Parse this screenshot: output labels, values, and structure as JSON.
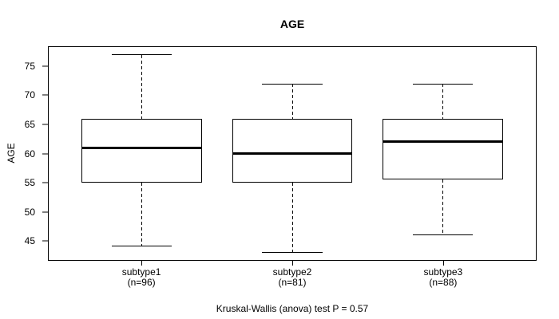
{
  "title": "AGE",
  "caption": "Kruskal-Wallis (anova) test P = 0.57",
  "colors": {
    "line": "#000000",
    "box_fill": "#ffffff",
    "background": "#ffffff"
  },
  "chart_data": {
    "type": "boxplot",
    "title": "AGE",
    "xlabel": "",
    "ylabel": "AGE",
    "ylim": [
      41.64,
      78.36
    ],
    "yticks": [
      45,
      50,
      55,
      60,
      65,
      70,
      75
    ],
    "grid": false,
    "legend": "none",
    "groups": [
      {
        "label": "subtype1",
        "sublabel": "(n=96)",
        "n": 96,
        "whisker_low": 44,
        "q1": 55,
        "median": 61,
        "q3": 66,
        "whisker_high": 77
      },
      {
        "label": "subtype2",
        "sublabel": "(n=81)",
        "n": 81,
        "whisker_low": 43,
        "q1": 55,
        "median": 60,
        "q3": 66,
        "whisker_high": 72
      },
      {
        "label": "subtype3",
        "sublabel": "(n=88)",
        "n": 88,
        "whisker_low": 46,
        "q1": 55.5,
        "median": 62,
        "q3": 66,
        "whisker_high": 72
      }
    ],
    "caption": "Kruskal-Wallis (anova) test P = 0.57"
  }
}
